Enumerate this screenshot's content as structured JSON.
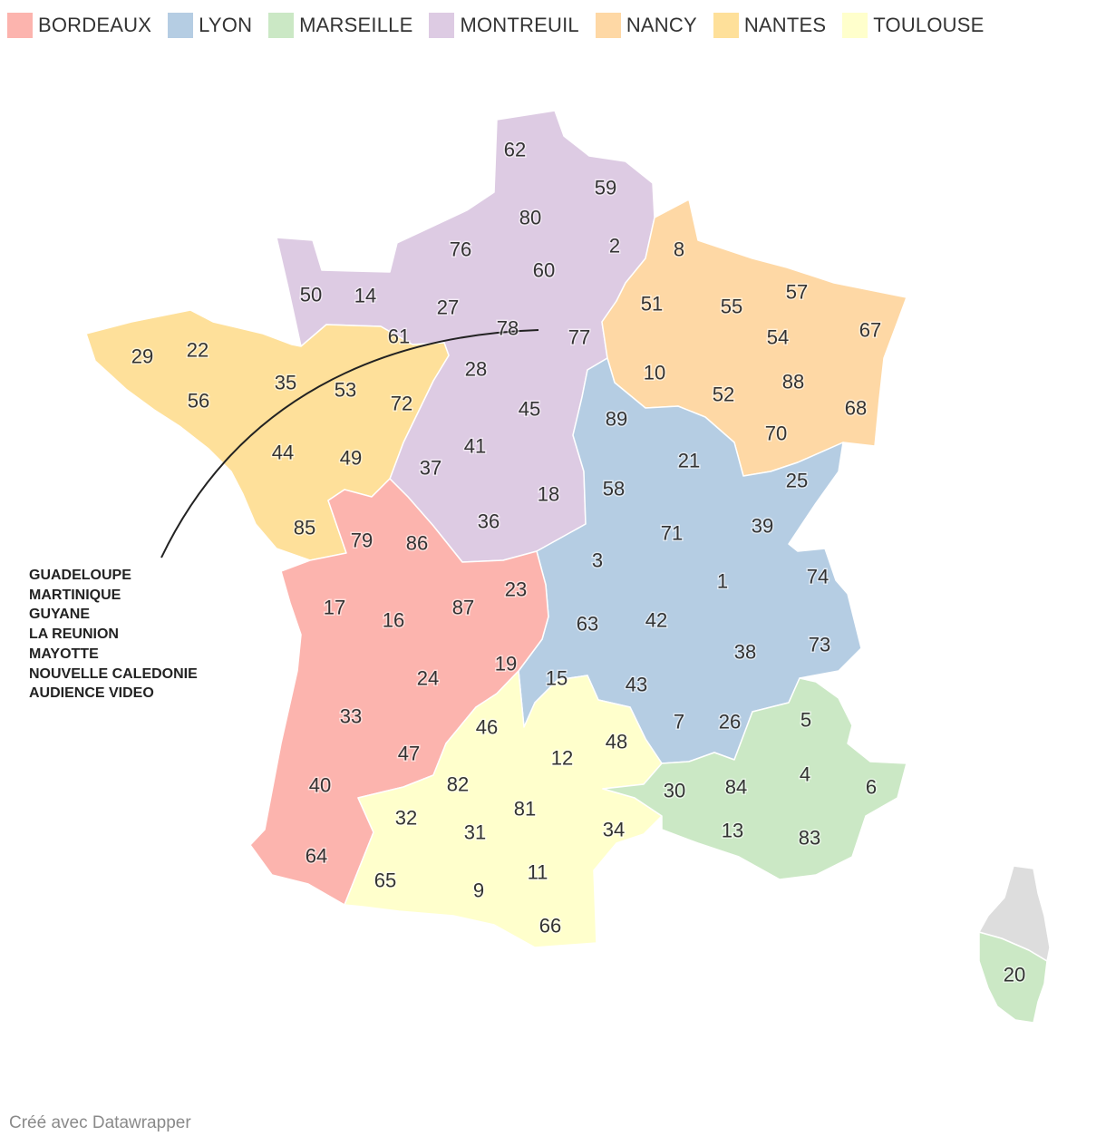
{
  "legend": [
    {
      "id": "bordeaux",
      "label": "BORDEAUX",
      "color": "#fcb4ae"
    },
    {
      "id": "lyon",
      "label": "LYON",
      "color": "#b5cde3"
    },
    {
      "id": "marseille",
      "label": "MARSEILLE",
      "color": "#cbe8c5"
    },
    {
      "id": "montreuil",
      "label": "MONTREUIL",
      "color": "#ddcbe3"
    },
    {
      "id": "nancy",
      "label": "NANCY",
      "color": "#fed8a5"
    },
    {
      "id": "nantes",
      "label": "NANTES",
      "color": "#fee09a"
    },
    {
      "id": "toulouse",
      "label": "TOULOUSE",
      "color": "#ffffcc"
    }
  ],
  "unassigned_color": "#dddddd",
  "overseas_note": [
    "GUADELOUPE",
    "MARTINIQUE",
    "GUYANE",
    "LA REUNION",
    "MAYOTTE",
    "NOUVELLE CALEDONIE",
    "AUDIENCE VIDEO"
  ],
  "credit": "Créé avec Datawrapper",
  "map_data": {
    "type": "choropleth",
    "region": "France (départements)",
    "departments": {
      "montreuil": [
        "62",
        "59",
        "80",
        "2",
        "76",
        "60",
        "50",
        "14",
        "27",
        "78",
        "77",
        "28",
        "45",
        "41",
        "37",
        "18",
        "36"
      ],
      "nancy": [
        "8",
        "51",
        "55",
        "57",
        "67",
        "54",
        "10",
        "52",
        "88",
        "68",
        "70"
      ],
      "nantes": [
        "29",
        "22",
        "56",
        "35",
        "53",
        "61",
        "72",
        "44",
        "49",
        "85"
      ],
      "lyon": [
        "89",
        "21",
        "58",
        "25",
        "71",
        "39",
        "3",
        "1",
        "74",
        "63",
        "42",
        "73",
        "38",
        "15",
        "43",
        "7",
        "26"
      ],
      "bordeaux": [
        "79",
        "86",
        "17",
        "16",
        "87",
        "23",
        "19",
        "24",
        "33",
        "47",
        "40",
        "64"
      ],
      "toulouse": [
        "46",
        "12",
        "48",
        "82",
        "81",
        "32",
        "31",
        "34",
        "11",
        "65",
        "9",
        "66"
      ],
      "marseille": [
        "5",
        "4",
        "6",
        "30",
        "84",
        "13",
        "83",
        "20"
      ],
      "unassigned": []
    }
  }
}
